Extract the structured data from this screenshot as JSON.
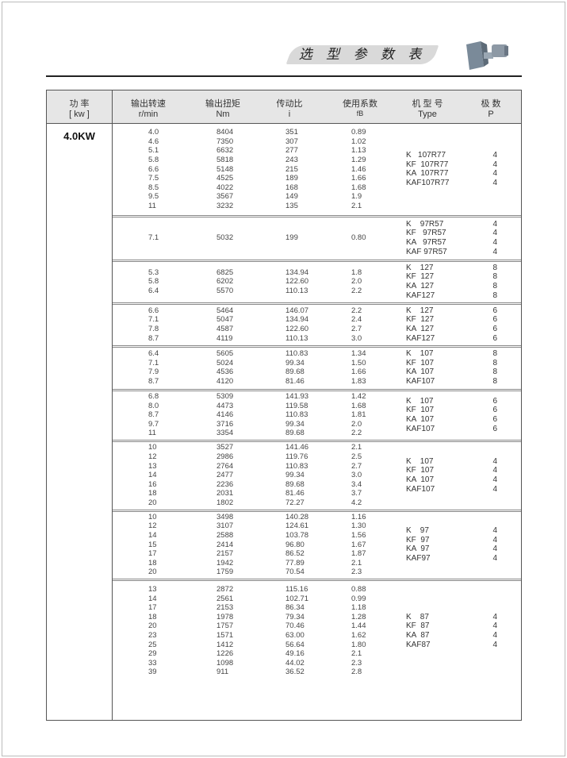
{
  "page_title": "选 型 参 数 表",
  "header": {
    "power": "功 率",
    "power_unit": "[ kw ]",
    "speed": "输出转速",
    "speed_unit": "r/min",
    "torque": "输出扭矩",
    "torque_unit": "Nm",
    "ratio": "传动比",
    "ratio_unit": "i",
    "factor": "使用系数",
    "factor_unit": "fB",
    "type": "机 型 号",
    "type_unit": "Type",
    "poles": "极 数",
    "poles_unit": "P"
  },
  "power_value": "4.0KW",
  "groups": [
    {
      "rows": [
        [
          "4.0",
          "8404",
          "351",
          "0.89"
        ],
        [
          "4.6",
          "7350",
          "307",
          "1.02"
        ],
        [
          "5.1",
          "6632",
          "277",
          "1.13"
        ],
        [
          "5.8",
          "5818",
          "243",
          "1.29"
        ],
        [
          "6.6",
          "5148",
          "215",
          "1.46"
        ],
        [
          "7.5",
          "4525",
          "189",
          "1.66"
        ],
        [
          "8.5",
          "4022",
          "168",
          "1.68"
        ],
        [
          "9.5",
          "3567",
          "149",
          "1.9"
        ],
        [
          "11",
          "3232",
          "135",
          "2.1"
        ]
      ],
      "types": [
        "K   107R77",
        "KF  107R77",
        "KA  107R77",
        "KAF107R77"
      ],
      "poles": [
        "4",
        "4",
        "4",
        "4"
      ]
    },
    {
      "rows": [
        [
          "7.1",
          "5032",
          "199",
          "0.80"
        ]
      ],
      "types": [
        "K    97R57",
        "KF   97R57",
        "KA   97R57",
        "KAF 97R57"
      ],
      "poles": [
        "4",
        "4",
        "4",
        "4"
      ]
    },
    {
      "rows": [
        [
          "5.3",
          "6825",
          "134.94",
          "1.8"
        ],
        [
          "5.8",
          "6202",
          "122.60",
          "2.0"
        ],
        [
          "6.4",
          "5570",
          "110.13",
          "2.2"
        ]
      ],
      "types": [
        "K    127",
        "KF  127",
        "KA  127",
        "KAF127"
      ],
      "poles": [
        "8",
        "8",
        "8",
        "8"
      ]
    },
    {
      "rows": [
        [
          "6.6",
          "5464",
          "146.07",
          "2.2"
        ],
        [
          "7.1",
          "5047",
          "134.94",
          "2.4"
        ],
        [
          "7.8",
          "4587",
          "122.60",
          "2.7"
        ],
        [
          "8.7",
          "4119",
          "110.13",
          "3.0"
        ]
      ],
      "types": [
        "K    127",
        "KF  127",
        "KA  127",
        "KAF127"
      ],
      "poles": [
        "6",
        "6",
        "6",
        "6"
      ]
    },
    {
      "rows": [
        [
          "6.4",
          "5605",
          "110.83",
          "1.34"
        ],
        [
          "7.1",
          "5024",
          "99.34",
          "1.50"
        ],
        [
          "7.9",
          "4536",
          "89.68",
          "1.66"
        ],
        [
          "8.7",
          "4120",
          "81.46",
          "1.83"
        ]
      ],
      "types": [
        "K    107",
        "KF  107",
        "KA  107",
        "KAF107"
      ],
      "poles": [
        "8",
        "8",
        "8",
        "8"
      ]
    },
    {
      "rows": [
        [
          "6.8",
          "5309",
          "141.93",
          "1.42"
        ],
        [
          "8.0",
          "4473",
          "119.58",
          "1.68"
        ],
        [
          "8.7",
          "4146",
          "110.83",
          "1.81"
        ],
        [
          "9.7",
          "3716",
          "99.34",
          "2.0"
        ],
        [
          "11",
          "3354",
          "89.68",
          "2.2"
        ]
      ],
      "types": [
        "K    107",
        "KF  107",
        "KA  107",
        "KAF107"
      ],
      "poles": [
        "6",
        "6",
        "6",
        "6"
      ]
    },
    {
      "rows": [
        [
          "10",
          "3527",
          "141.46",
          "2.1"
        ],
        [
          "12",
          "2986",
          "119.76",
          "2.5"
        ],
        [
          "13",
          "2764",
          "110.83",
          "2.7"
        ],
        [
          "14",
          "2477",
          "99.34",
          "3.0"
        ],
        [
          "16",
          "2236",
          "89.68",
          "3.4"
        ],
        [
          "18",
          "2031",
          "81.46",
          "3.7"
        ],
        [
          "20",
          "1802",
          "72.27",
          "4.2"
        ]
      ],
      "types": [
        "K    107",
        "KF  107",
        "KA  107",
        "KAF107"
      ],
      "poles": [
        "4",
        "4",
        "4",
        "4"
      ]
    },
    {
      "rows": [
        [
          "10",
          "3498",
          "140.28",
          "1.16"
        ],
        [
          "12",
          "3107",
          "124.61",
          "1.30"
        ],
        [
          "14",
          "2588",
          "103.78",
          "1.56"
        ],
        [
          "15",
          "2414",
          "96.80",
          "1.67"
        ],
        [
          "17",
          "2157",
          "86.52",
          "1.87"
        ],
        [
          "18",
          "1942",
          "77.89",
          "2.1"
        ],
        [
          "20",
          "1759",
          "70.54",
          "2.3"
        ]
      ],
      "types": [
        "K    97",
        "KF  97",
        "KA  97",
        "KAF97"
      ],
      "poles": [
        "4",
        "4",
        "4",
        "4"
      ]
    },
    {
      "rows": [
        [
          "13",
          "2872",
          "115.16",
          "0.88"
        ],
        [
          "14",
          "2561",
          "102.71",
          "0.99"
        ],
        [
          "17",
          "2153",
          "86.34",
          "1.18"
        ],
        [
          "18",
          "1978",
          "79.34",
          "1.28"
        ],
        [
          "20",
          "1757",
          "70.46",
          "1.44"
        ],
        [
          "23",
          "1571",
          "63.00",
          "1.62"
        ],
        [
          "25",
          "1412",
          "56.64",
          "1.80"
        ],
        [
          "29",
          "1226",
          "49.16",
          "2.1"
        ],
        [
          "33",
          "1098",
          "44.02",
          "2.3"
        ],
        [
          "39",
          "911",
          "36.52",
          "2.8"
        ]
      ],
      "types": [
        "K    87",
        "KF  87",
        "KA  87",
        "KAF87"
      ],
      "poles": [
        "4",
        "4",
        "4",
        "4"
      ]
    }
  ]
}
